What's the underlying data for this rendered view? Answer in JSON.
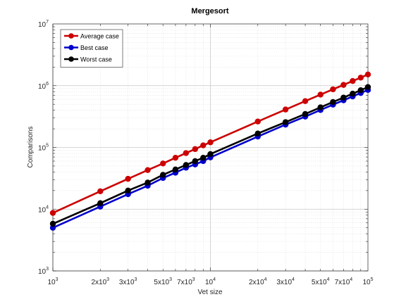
{
  "chart_data": {
    "type": "line",
    "title": "Mergesort",
    "xlabel": "Vet size",
    "ylabel": "Comparisons",
    "xscale": "log",
    "yscale": "log",
    "xlim": [
      1000,
      100000
    ],
    "ylim": [
      1000,
      10000000
    ],
    "grid": true,
    "minor_grid": true,
    "legend_position": "top-left",
    "x_ticks": [
      {
        "value": 1000,
        "base": "10",
        "exp": "3"
      },
      {
        "value": 2000,
        "base": "2x10",
        "exp": "3"
      },
      {
        "value": 3000,
        "base": "3x10",
        "exp": "3"
      },
      {
        "value": 5000,
        "base": "5x10",
        "exp": "3"
      },
      {
        "value": 7000,
        "base": "7x10",
        "exp": "3"
      },
      {
        "value": 10000,
        "base": "10",
        "exp": "4"
      },
      {
        "value": 20000,
        "base": "2x10",
        "exp": "4"
      },
      {
        "value": 30000,
        "base": "3x10",
        "exp": "4"
      },
      {
        "value": 50000,
        "base": "5x10",
        "exp": "4"
      },
      {
        "value": 70000,
        "base": "7x10",
        "exp": "4"
      },
      {
        "value": 100000,
        "base": "10",
        "exp": "5"
      }
    ],
    "y_ticks": [
      {
        "value": 1000,
        "base": "10",
        "exp": "3"
      },
      {
        "value": 10000,
        "base": "10",
        "exp": "4"
      },
      {
        "value": 100000,
        "base": "10",
        "exp": "5"
      },
      {
        "value": 1000000,
        "base": "10",
        "exp": "6"
      },
      {
        "value": 10000000,
        "base": "10",
        "exp": "7"
      }
    ],
    "x": [
      1000,
      2000,
      3000,
      4000,
      5000,
      6000,
      7000,
      8000,
      9000,
      10000,
      20000,
      30000,
      40000,
      50000,
      60000,
      70000,
      80000,
      90000,
      100000
    ],
    "series": [
      {
        "name": "Average case",
        "color": "#cc0000",
        "values": [
          8700,
          19500,
          31000,
          43000,
          55000,
          68000,
          81000,
          94000,
          108000,
          121000,
          263000,
          411000,
          562000,
          717000,
          873000,
          1030000,
          1190000,
          1350000,
          1520000
        ]
      },
      {
        "name": "Best case",
        "color": "#0000cc",
        "values": [
          5000,
          11000,
          17500,
          24000,
          32000,
          39000,
          47000,
          53000,
          60000,
          69000,
          150000,
          234000,
          316000,
          404000,
          493000,
          580000,
          669000,
          761000,
          853000
        ]
      },
      {
        "name": "Worst case",
        "color": "#000000",
        "values": [
          5800,
          12500,
          20000,
          27000,
          36000,
          44000,
          52000,
          60000,
          68000,
          78000,
          168000,
          257000,
          348000,
          446000,
          544000,
          642000,
          742000,
          845000,
          950000
        ]
      }
    ]
  }
}
